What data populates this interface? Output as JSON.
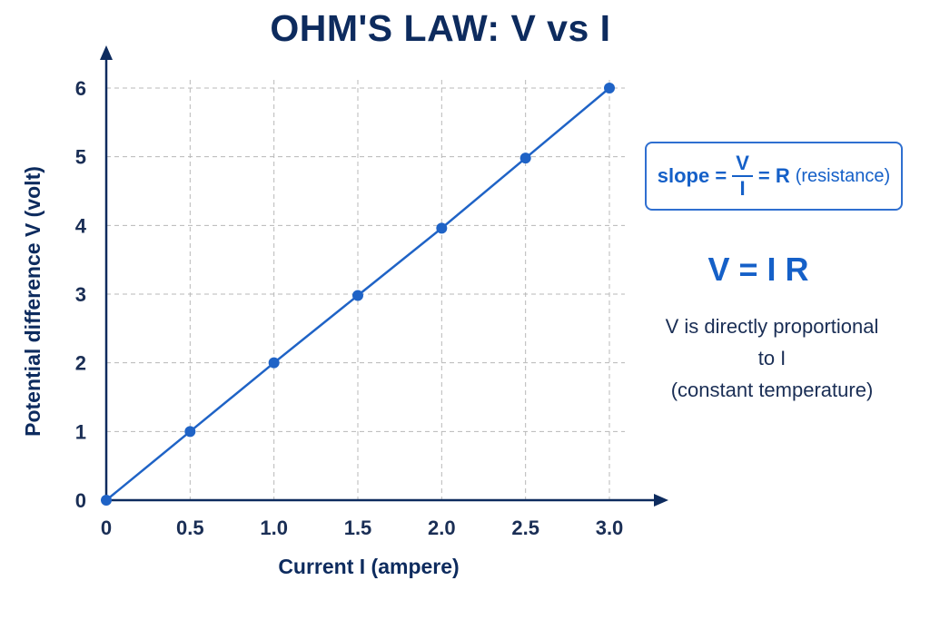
{
  "chart_data": {
    "type": "line",
    "title": "OHM'S LAW: V vs I",
    "xlabel": "Current I (ampere)",
    "ylabel": "Potential difference V (volt)",
    "x_ticks": [
      "0",
      "0.5",
      "1.0",
      "1.5",
      "2.0",
      "2.5",
      "3.0"
    ],
    "y_ticks": [
      "0",
      "1",
      "2",
      "3",
      "4",
      "5",
      "6"
    ],
    "xlim": [
      0,
      3.0
    ],
    "ylim": [
      0,
      6
    ],
    "grid": true,
    "series": [
      {
        "x": [
          0,
          0.5,
          1.0,
          1.5,
          2.0,
          2.5,
          3.0
        ],
        "y": [
          0,
          1.0,
          2.0,
          2.98,
          3.96,
          4.98,
          6.0
        ]
      }
    ],
    "colors": {
      "line": "#1f63c6",
      "axis": "#0d2b5e",
      "grid": "#b8b8b8"
    }
  },
  "annotations": {
    "slope_prefix": "slope =",
    "slope_numerator": "V",
    "slope_denominator": "I",
    "slope_suffix": "= R",
    "slope_note": "(resistance)",
    "formula": "V = I R",
    "desc_line1": "V is directly proportional",
    "desc_line2": "to I",
    "desc_line3": "(constant temperature)"
  }
}
